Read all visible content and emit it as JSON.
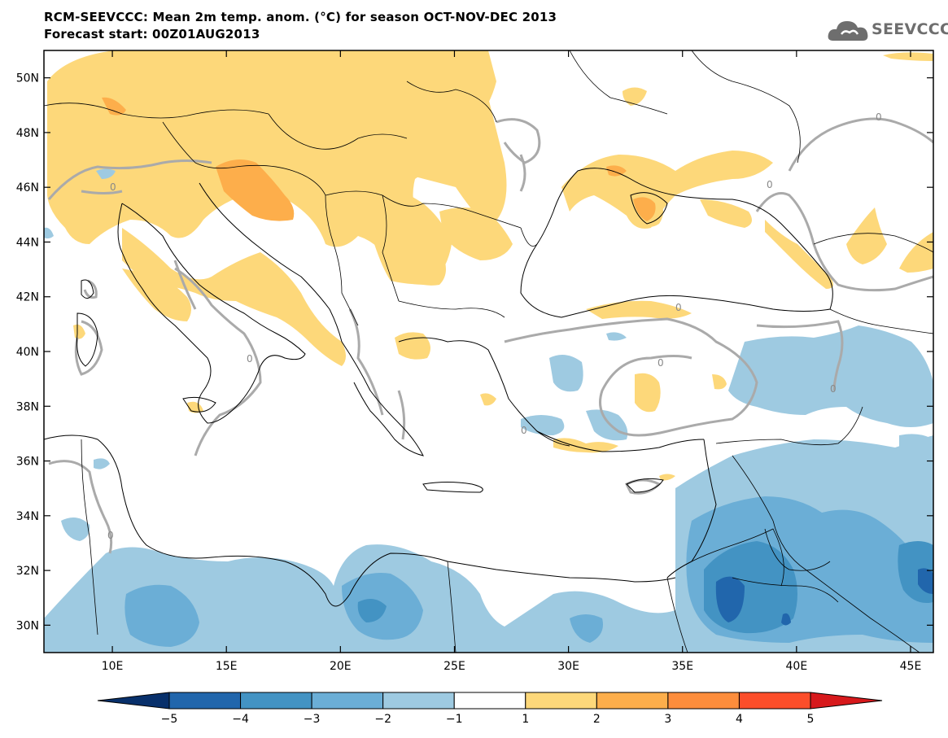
{
  "title_line1": "RCM-SEEVCCC: Mean 2m temp. anom. (°C) for season OCT-NOV-DEC 2013",
  "title_line2": "Forecast start: 00Z01AUG2013",
  "logo_text": "SEEVCCC",
  "map": {
    "lon_range": [
      7,
      46
    ],
    "lat_range": [
      29,
      51
    ],
    "lon_ticks": [
      {
        "value": 10,
        "label": "10E"
      },
      {
        "value": 15,
        "label": "15E"
      },
      {
        "value": 20,
        "label": "20E"
      },
      {
        "value": 25,
        "label": "25E"
      },
      {
        "value": 30,
        "label": "30E"
      },
      {
        "value": 35,
        "label": "35E"
      },
      {
        "value": 40,
        "label": "40E"
      },
      {
        "value": 45,
        "label": "45E"
      }
    ],
    "lat_ticks": [
      {
        "value": 30,
        "label": "30N"
      },
      {
        "value": 32,
        "label": "32N"
      },
      {
        "value": 34,
        "label": "34N"
      },
      {
        "value": 36,
        "label": "36N"
      },
      {
        "value": 38,
        "label": "38N"
      },
      {
        "value": 40,
        "label": "40N"
      },
      {
        "value": 42,
        "label": "42N"
      },
      {
        "value": 44,
        "label": "44N"
      },
      {
        "value": 46,
        "label": "46N"
      },
      {
        "value": 48,
        "label": "48N"
      },
      {
        "value": 50,
        "label": "50N"
      }
    ],
    "zero_contour_label": "0"
  },
  "colorbar": {
    "levels": [
      "−5",
      "−4",
      "−3",
      "−2",
      "−1",
      "1",
      "2",
      "3",
      "4",
      "5"
    ],
    "colors": [
      "#08306b",
      "#2166ac",
      "#4393c3",
      "#6baed6",
      "#9ecae1",
      "#ffffff",
      "#fdd87a",
      "#fdae4b",
      "#fd8d3c",
      "#fc4e2a",
      "#d7191c"
    ]
  },
  "colors": {
    "warm1": "#fdd87a",
    "warm2": "#fdae4b",
    "warm3": "#fd8d3c",
    "cold1": "#9ecae1",
    "cold2": "#6baed6",
    "cold3": "#4393c3",
    "cold4": "#2166ac",
    "zero_line": "#aaaaaa"
  }
}
